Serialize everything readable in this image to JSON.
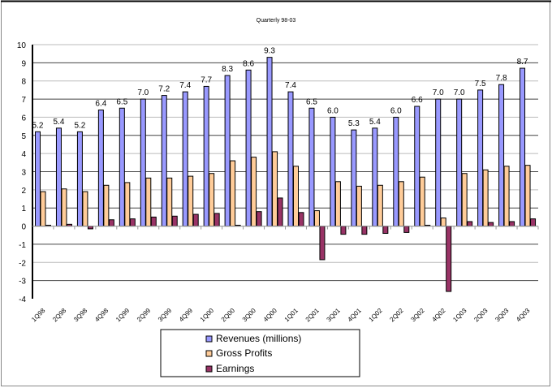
{
  "chart_data": {
    "type": "bar",
    "title": "Quarterly 98-03",
    "xlabel": "",
    "ylabel": "",
    "ylim": [
      -4,
      10
    ],
    "yticks": [
      "10",
      "9",
      "8",
      "7",
      "6",
      "5",
      "4",
      "3",
      "2",
      "1",
      "0",
      "-1",
      "-2",
      "-3",
      "-4"
    ],
    "grid": true,
    "legend_position": "bottom",
    "categories": [
      "1Q98",
      "2Q98",
      "3Q98",
      "4Q98",
      "1Q99",
      "2Q99",
      "3Q99",
      "4Q99",
      "1Q00",
      "2Q00",
      "3Q00",
      "4Q00",
      "1Q01",
      "2Q01",
      "3Q01",
      "4Q01",
      "1Q02",
      "2Q02",
      "3Q02",
      "4Q02",
      "1Q03",
      "2Q03",
      "3Q03",
      "4Q03"
    ],
    "series": [
      {
        "name": "Revenues (millions)",
        "color": "#9999ff",
        "values": [
          5.2,
          5.4,
          5.2,
          6.4,
          6.5,
          7.0,
          7.2,
          7.4,
          7.7,
          8.3,
          8.6,
          9.3,
          7.4,
          6.5,
          6.0,
          5.3,
          5.4,
          6.0,
          6.6,
          7.0,
          7.0,
          7.5,
          7.8,
          8.7
        ],
        "data_labels": [
          "5.2",
          "5.4",
          "5.2",
          "6.4",
          "6.5",
          "7.0",
          "7.2",
          "7.4",
          "7.7",
          "8.3",
          "8.6",
          "9.3",
          "7.4",
          "6.5",
          "6.0",
          "5.3",
          "5.4",
          "6.0",
          "6.6",
          "7.0",
          "7.0",
          "7.5",
          "7.8",
          "8.7"
        ]
      },
      {
        "name": "Gross Profits",
        "color": "#ffcc99",
        "values": [
          1.9,
          2.05,
          1.9,
          2.25,
          2.4,
          2.65,
          2.65,
          2.75,
          2.9,
          3.6,
          3.8,
          4.1,
          3.3,
          0.85,
          2.45,
          2.2,
          2.25,
          2.45,
          2.7,
          0.45,
          2.9,
          3.1,
          3.3,
          3.35
        ]
      },
      {
        "name": "Earnings",
        "color": "#993366",
        "values": [
          0.05,
          0.1,
          -0.15,
          0.35,
          0.4,
          0.5,
          0.55,
          0.65,
          0.7,
          0.05,
          0.8,
          1.55,
          0.75,
          -1.85,
          -0.45,
          -0.45,
          -0.4,
          -0.35,
          0.05,
          -3.6,
          0.25,
          0.2,
          0.25,
          0.4
        ]
      }
    ]
  }
}
